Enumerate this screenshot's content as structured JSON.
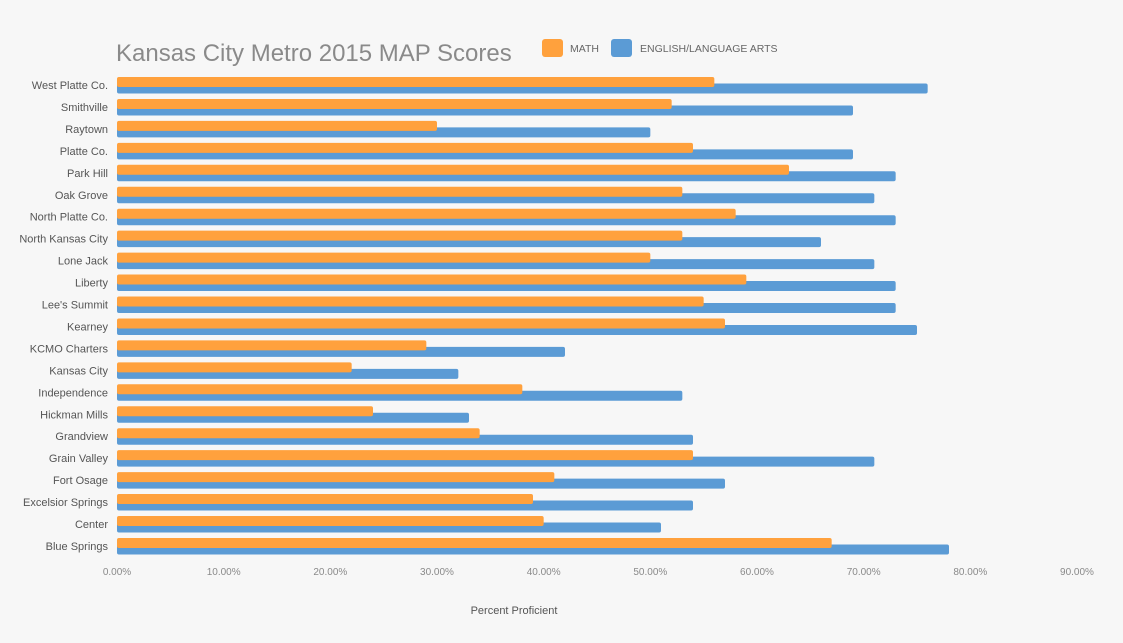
{
  "chart_data": {
    "type": "bar",
    "orientation": "horizontal",
    "title": "Kansas City Metro 2015 MAP Scores",
    "xlabel": "Percent Proficient",
    "ylabel": "",
    "xlim": [
      0,
      90
    ],
    "x_ticks": [
      "0.00%",
      "10.00%",
      "20.00%",
      "30.00%",
      "40.00%",
      "50.00%",
      "60.00%",
      "70.00%",
      "80.00%",
      "90.00%"
    ],
    "grid": false,
    "legend_position": "top",
    "categories": [
      "West Platte Co.",
      "Smithville",
      "Raytown",
      "Platte Co.",
      "Park Hill",
      "Oak Grove",
      "North Platte Co.",
      "North Kansas City",
      "Lone Jack",
      "Liberty",
      "Lee's Summit",
      "Kearney",
      "KCMO Charters",
      "Kansas City",
      "Independence",
      "Hickman Mills",
      "Grandview",
      "Grain Valley",
      "Fort Osage",
      "Excelsior Springs",
      "Center",
      "Blue Springs"
    ],
    "series": [
      {
        "name": "MATH",
        "color": "#ffa13d",
        "values": [
          56.0,
          52.0,
          30.0,
          54.0,
          63.0,
          53.0,
          58.0,
          53.0,
          50.0,
          59.0,
          55.0,
          57.0,
          29.0,
          22.0,
          38.0,
          24.0,
          34.0,
          54.0,
          41.0,
          39.0,
          40.0,
          67.0
        ]
      },
      {
        "name": "ENGLISH/LANGUAGE ARTS",
        "color": "#5b9bd5",
        "values": [
          76.0,
          69.0,
          50.0,
          69.0,
          73.0,
          71.0,
          73.0,
          66.0,
          71.0,
          73.0,
          73.0,
          75.0,
          42.0,
          32.0,
          53.0,
          33.0,
          54.0,
          71.0,
          57.0,
          54.0,
          51.0,
          78.0
        ]
      }
    ]
  }
}
